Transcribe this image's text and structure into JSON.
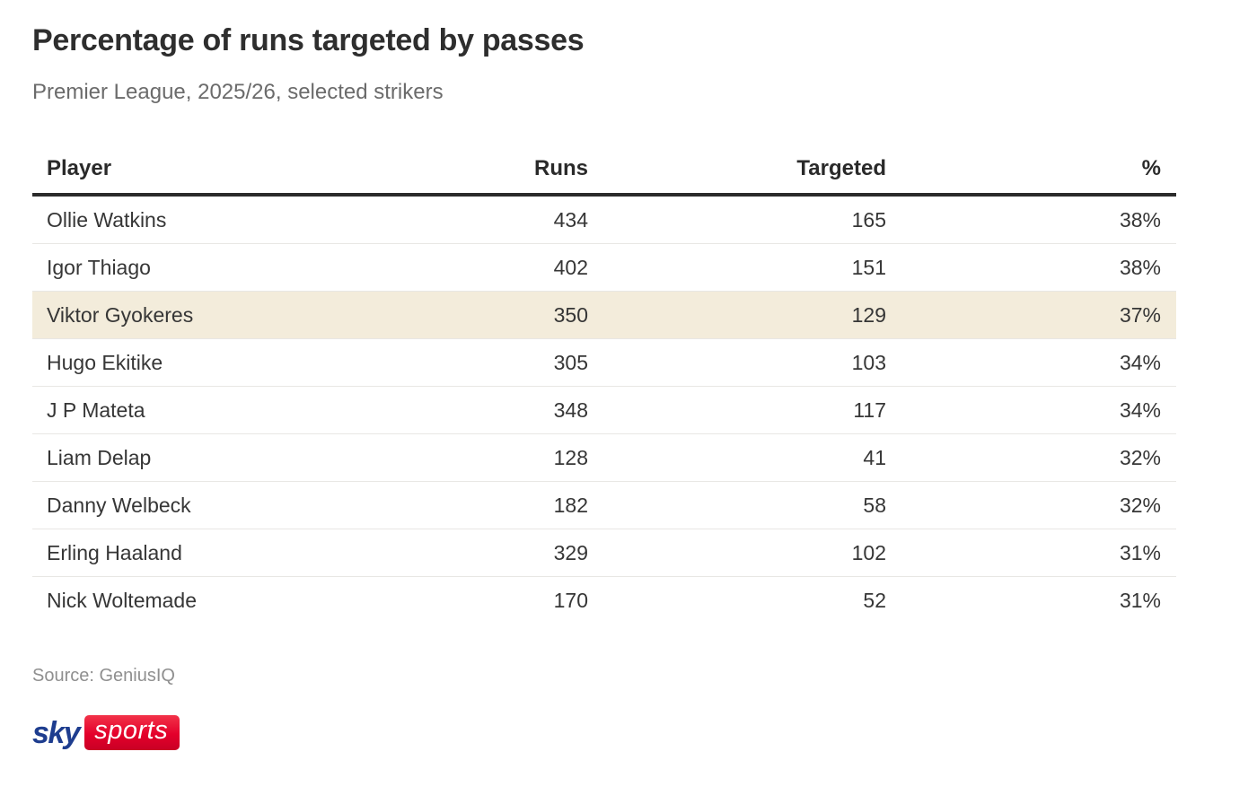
{
  "chart_data": {
    "type": "table",
    "title": "Percentage of runs targeted by passes",
    "subtitle": "Premier League, 2025/26, selected strikers",
    "columns": [
      "Player",
      "Runs",
      "Targeted",
      "%"
    ],
    "rows": [
      {
        "player": "Ollie Watkins",
        "runs": "434",
        "targeted": "165",
        "pct": "38%",
        "highlight": false
      },
      {
        "player": "Igor Thiago",
        "runs": "402",
        "targeted": "151",
        "pct": "38%",
        "highlight": false
      },
      {
        "player": "Viktor Gyokeres",
        "runs": "350",
        "targeted": "129",
        "pct": "37%",
        "highlight": true
      },
      {
        "player": "Hugo Ekitike",
        "runs": "305",
        "targeted": "103",
        "pct": "34%",
        "highlight": false
      },
      {
        "player": "J P Mateta",
        "runs": "348",
        "targeted": "117",
        "pct": "34%",
        "highlight": false
      },
      {
        "player": "Liam Delap",
        "runs": "128",
        "targeted": "41",
        "pct": "32%",
        "highlight": false
      },
      {
        "player": "Danny Welbeck",
        "runs": "182",
        "targeted": "58",
        "pct": "32%",
        "highlight": false
      },
      {
        "player": "Erling Haaland",
        "runs": "329",
        "targeted": "102",
        "pct": "31%",
        "highlight": false
      },
      {
        "player": "Nick Woltemade",
        "runs": "170",
        "targeted": "52",
        "pct": "31%",
        "highlight": false
      }
    ],
    "highlighted_player": "Viktor Gyokeres",
    "source": "Source: GeniusIQ"
  },
  "logo": {
    "sky_text": "sky",
    "sports_text": "sports"
  },
  "colors": {
    "title_text": "#2e2e2e",
    "subtitle_text": "#6b6b6b",
    "body_text": "#363636",
    "header_border": "#2b2b2b",
    "row_divider": "#e8e7e4",
    "highlight_bg": "#f3ecdb",
    "source_text": "#8f8f8f",
    "sky_blue": "#1e3d8f",
    "sports_red": "#e4002b"
  }
}
